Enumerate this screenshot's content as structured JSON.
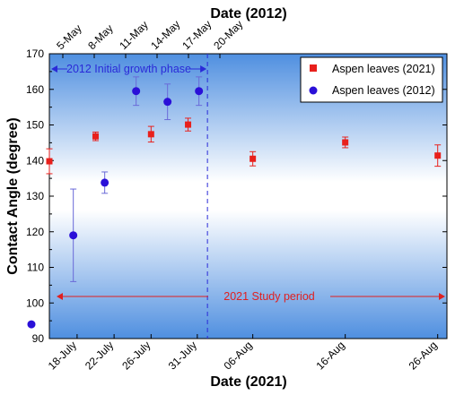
{
  "chart_data": {
    "type": "scatter",
    "xlabel": "Date (2021)",
    "x2label": "Date (2012)",
    "ylabel": "Contact Angle (degree)",
    "ylim": [
      90,
      170
    ],
    "yticks": [
      90,
      100,
      110,
      120,
      130,
      140,
      150,
      160,
      170
    ],
    "x_axis_2021": {
      "range": [
        "2021-07-15",
        "2021-08-27"
      ],
      "ticks": [
        {
          "date": "2021-07-18",
          "label": "18-July"
        },
        {
          "date": "2021-07-22",
          "label": "22-July"
        },
        {
          "date": "2021-07-26",
          "label": "26-July"
        },
        {
          "date": "2021-07-31",
          "label": "31-July"
        },
        {
          "date": "2021-08-06",
          "label": "06-Aug"
        },
        {
          "date": "2021-08-16",
          "label": "16-Aug"
        },
        {
          "date": "2021-08-26",
          "label": "26-Aug"
        }
      ]
    },
    "x_axis_2012": {
      "range": [
        "2012-05-02",
        "2012-05-21"
      ],
      "ticks": [
        {
          "date": "2012-05-05",
          "label": "5-May"
        },
        {
          "date": "2012-05-08",
          "label": "8-May"
        },
        {
          "date": "2012-05-11",
          "label": "11-May"
        },
        {
          "date": "2012-05-14",
          "label": "14-May"
        },
        {
          "date": "2012-05-17",
          "label": "17-May"
        },
        {
          "date": "2012-05-20",
          "label": "20-May"
        }
      ]
    },
    "series": [
      {
        "name": "Aspen leaves (2021)",
        "axis": "2021",
        "marker": "square",
        "color": "#e8201c",
        "points": [
          {
            "x": "2021-07-15",
            "y": 139.8,
            "err": 3.5
          },
          {
            "x": "2021-07-20",
            "y": 146.8,
            "err": 1.2
          },
          {
            "x": "2021-07-26",
            "y": 147.4,
            "err": 2.2
          },
          {
            "x": "2021-07-30",
            "y": 150.1,
            "err": 1.8
          },
          {
            "x": "2021-08-06",
            "y": 140.5,
            "err": 2.0
          },
          {
            "x": "2021-08-16",
            "y": 145.1,
            "err": 1.5
          },
          {
            "x": "2021-08-26",
            "y": 141.4,
            "err": 3.0
          }
        ]
      },
      {
        "name": "Aspen leaves (2012)",
        "axis": "2012",
        "marker": "circle",
        "color": "#2a10d8",
        "points": [
          {
            "x": "2012-05-02",
            "y": 94.0,
            "err": 0
          },
          {
            "x": "2012-05-06",
            "y": 119.0,
            "err": 13.0
          },
          {
            "x": "2012-05-09",
            "y": 133.8,
            "err": 3.0
          },
          {
            "x": "2012-05-12",
            "y": 159.5,
            "err": 4.0
          },
          {
            "x": "2012-05-15",
            "y": 156.5,
            "err": 5.0
          },
          {
            "x": "2012-05-18",
            "y": 159.5,
            "err": 4.0
          }
        ]
      }
    ],
    "annotations": [
      {
        "text": "2012 Initial growth phase",
        "color": "#2a2ad8",
        "type": "double-arrow"
      },
      {
        "text": "2021 Study period",
        "color": "#e02020",
        "type": "double-arrow"
      }
    ],
    "divider_date_2021": "2021-08-01",
    "legend_placement": "top-right",
    "grid": false
  }
}
